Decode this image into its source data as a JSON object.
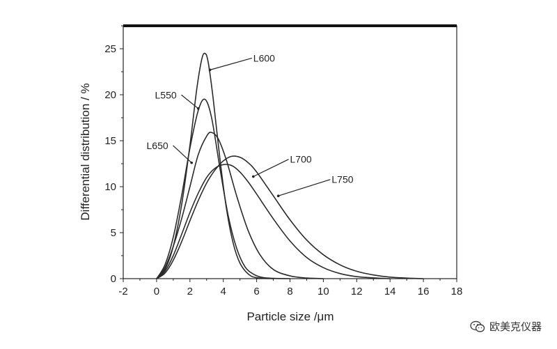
{
  "chart_data": {
    "type": "line",
    "xlabel": "Particle size /μm",
    "ylabel": "Differential distribution / %",
    "xlim": [
      -2,
      18
    ],
    "ylim": [
      0,
      27.5
    ],
    "xticks": [
      "-2",
      "0",
      "2",
      "4",
      "6",
      "8",
      "10",
      "12",
      "14",
      "16",
      "18"
    ],
    "yticks": [
      "0",
      "5",
      "10",
      "15",
      "20",
      "25"
    ],
    "grid": false,
    "legend": "inline labels",
    "series": [
      {
        "name": "L550",
        "x": [
          0,
          0.5,
          1.0,
          1.5,
          2.0,
          2.5,
          2.9,
          3.3,
          3.8,
          4.3,
          4.8,
          5.3,
          5.8,
          6.3,
          7.0,
          8.0
        ],
        "y": [
          0,
          1.5,
          4.5,
          9.0,
          14.2,
          18.3,
          19.5,
          17.5,
          12.0,
          6.8,
          3.3,
          1.3,
          0.5,
          0.15,
          0.03,
          0
        ]
      },
      {
        "name": "L600",
        "x": [
          0,
          0.5,
          1.0,
          1.5,
          2.0,
          2.4,
          2.7,
          2.9,
          3.1,
          3.4,
          3.8,
          4.2,
          4.6,
          5.0,
          5.5,
          6.0,
          7.0
        ],
        "y": [
          0,
          1.0,
          3.5,
          8.0,
          14.5,
          20.5,
          23.8,
          24.5,
          23.5,
          19.5,
          13.0,
          7.5,
          3.8,
          1.7,
          0.5,
          0.1,
          0
        ]
      },
      {
        "name": "L650",
        "x": [
          0,
          0.5,
          1.0,
          1.5,
          2.0,
          2.5,
          3.0,
          3.3,
          3.7,
          4.2,
          4.8,
          5.5,
          6.2,
          7.0,
          8.0,
          9.0,
          10.0
        ],
        "y": [
          0,
          1.2,
          3.5,
          6.5,
          10.0,
          13.5,
          15.5,
          15.9,
          15.2,
          12.8,
          9.0,
          5.2,
          2.6,
          1.0,
          0.3,
          0.07,
          0
        ]
      },
      {
        "name": "L700",
        "x": [
          0,
          0.5,
          1.0,
          1.5,
          2.0,
          2.5,
          3.0,
          3.5,
          4.0,
          4.5,
          5.0,
          5.5,
          6.0,
          7.0,
          8.0,
          9.0,
          10.0,
          11.0,
          12.0,
          13.0,
          14.0
        ],
        "y": [
          0,
          0.8,
          2.5,
          4.8,
          7.2,
          9.3,
          11.0,
          12.0,
          12.4,
          12.3,
          11.6,
          10.5,
          9.2,
          6.5,
          4.1,
          2.3,
          1.2,
          0.55,
          0.22,
          0.08,
          0
        ]
      },
      {
        "name": "L750",
        "x": [
          0,
          0.5,
          1.0,
          1.5,
          2.0,
          2.5,
          3.0,
          3.5,
          4.0,
          4.5,
          5.0,
          5.5,
          6.0,
          7.0,
          8.0,
          9.0,
          10.0,
          11.0,
          12.0,
          13.0,
          14.0,
          15.0,
          16.0
        ],
        "y": [
          0,
          0.6,
          2.0,
          4.0,
          6.3,
          8.5,
          10.4,
          11.8,
          12.8,
          13.3,
          13.2,
          12.6,
          11.6,
          9.0,
          6.4,
          4.2,
          2.6,
          1.5,
          0.8,
          0.4,
          0.17,
          0.06,
          0
        ]
      }
    ],
    "annotations": [
      {
        "text": "L600",
        "x": 5.8,
        "y": 23.6,
        "arrow_to": [
          3.2,
          22.7
        ]
      },
      {
        "text": "L550",
        "x": -0.1,
        "y": 19.6,
        "arrow_to": [
          2.5,
          18.5
        ]
      },
      {
        "text": "L650",
        "x": -0.6,
        "y": 14.1,
        "arrow_to": [
          2.1,
          12.6
        ]
      },
      {
        "text": "L700",
        "x": 8.0,
        "y": 12.6,
        "arrow_to": [
          5.8,
          11.1
        ]
      },
      {
        "text": "L750",
        "x": 10.5,
        "y": 10.4,
        "arrow_to": [
          7.3,
          9.0
        ]
      }
    ]
  },
  "watermark": {
    "icon": "wechat-icon",
    "text": "欧美克仪器"
  }
}
